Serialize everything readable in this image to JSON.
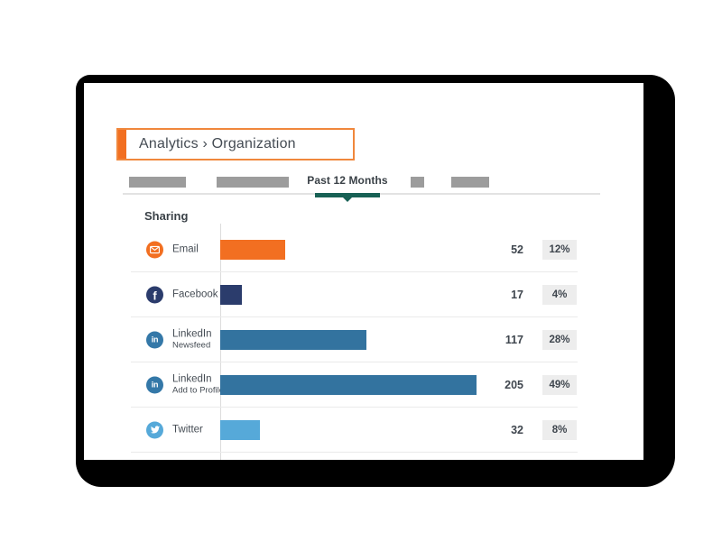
{
  "header": {
    "breadcrumb": "Analytics › Organization"
  },
  "tabs": {
    "active_label": "Past 12 Months",
    "placeholder_count": 4
  },
  "colors": {
    "accent_orange": "#f26f21",
    "header_border_orange": "#f0873c",
    "active_tab_teal": "#186155",
    "tab_placeholder_gray": "#9c9c9c",
    "badge_background": "#ededed",
    "text_dark": "#3f464e",
    "shadow_black": "#000000"
  },
  "chart_data": {
    "type": "bar",
    "orientation": "horizontal",
    "title": "Sharing",
    "categories": [
      "Email",
      "Facebook",
      "LinkedIn Newsfeed",
      "LinkedIn Add to Profile",
      "Twitter"
    ],
    "values": [
      52,
      17,
      117,
      205,
      32
    ],
    "percent_labels": [
      "12%",
      "4%",
      "28%",
      "49%",
      "8%"
    ],
    "max_value": 205,
    "grid": false,
    "legend": "none",
    "rows": [
      {
        "label": "Email",
        "sublabel": "",
        "icon": "email-icon",
        "value": 52,
        "percent": "12%",
        "bar_color": "#f26f21",
        "icon_color": "#f26f21"
      },
      {
        "label": "Facebook",
        "sublabel": "",
        "icon": "facebook-icon",
        "value": 17,
        "percent": "4%",
        "bar_color": "#2b3c6c",
        "icon_color": "#2b3c6c"
      },
      {
        "label": "LinkedIn",
        "sublabel": "Newsfeed",
        "icon": "linkedin-icon",
        "value": 117,
        "percent": "28%",
        "bar_color": "#33739f",
        "icon_color": "#3478a8"
      },
      {
        "label": "LinkedIn",
        "sublabel": "Add to Profile",
        "icon": "linkedin-icon",
        "value": 205,
        "percent": "49%",
        "bar_color": "#33739f",
        "icon_color": "#3478a8"
      },
      {
        "label": "Twitter",
        "sublabel": "",
        "icon": "twitter-icon",
        "value": 32,
        "percent": "8%",
        "bar_color": "#56a9d9",
        "icon_color": "#56a9d9"
      }
    ]
  }
}
